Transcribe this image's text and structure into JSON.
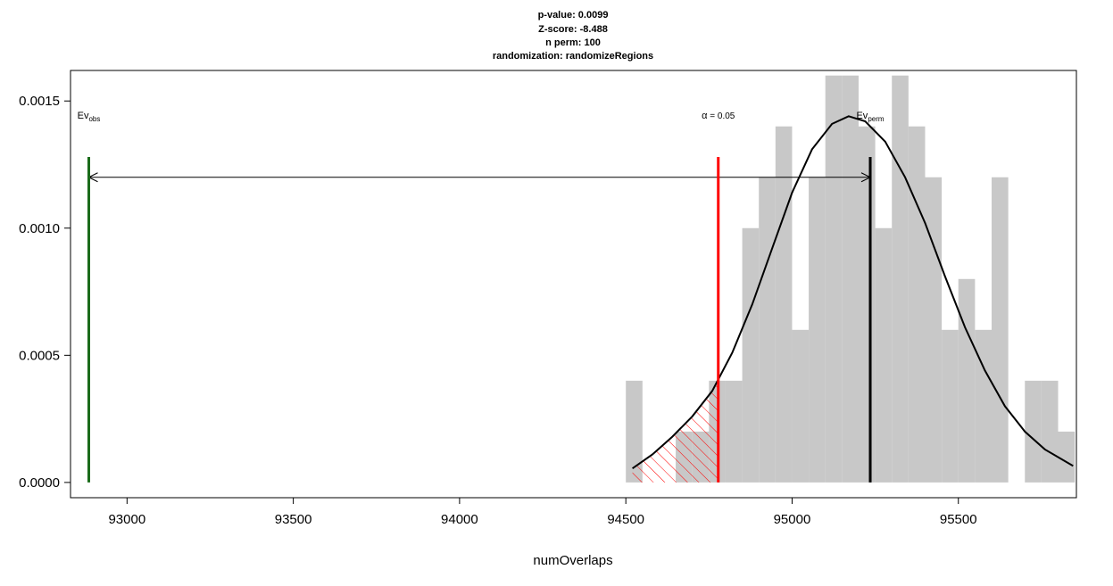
{
  "chart_data": {
    "type": "histogram",
    "title_lines": [
      "p-value:  0.0099",
      "Z-score:  -8.488",
      "n perm:  100",
      "randomization:  randomizeRegions"
    ],
    "xlabel": "numOverlaps",
    "ylabel": "",
    "xlim": [
      92830,
      95855
    ],
    "ylim": [
      -6e-05,
      0.00162
    ],
    "x_ticks": [
      93000,
      93500,
      94000,
      94500,
      95000,
      95500
    ],
    "x_tick_labels": [
      "93000",
      "93500",
      "94000",
      "94500",
      "95000",
      "95500"
    ],
    "y_ticks": [
      0,
      0.0005,
      0.001,
      0.0015
    ],
    "y_tick_labels": [
      "0.0000",
      "0.0005",
      "0.0010",
      "0.0015"
    ],
    "histogram": {
      "bin_width": 50,
      "bins": [
        {
          "x0": 94500,
          "x1": 94550,
          "density": 0.0004
        },
        {
          "x0": 94550,
          "x1": 94600,
          "density": 0.0
        },
        {
          "x0": 94600,
          "x1": 94650,
          "density": 0.0
        },
        {
          "x0": 94650,
          "x1": 94700,
          "density": 0.0002
        },
        {
          "x0": 94700,
          "x1": 94750,
          "density": 0.0002
        },
        {
          "x0": 94750,
          "x1": 94800,
          "density": 0.0004
        },
        {
          "x0": 94800,
          "x1": 94850,
          "density": 0.0004
        },
        {
          "x0": 94850,
          "x1": 94900,
          "density": 0.001
        },
        {
          "x0": 94900,
          "x1": 94950,
          "density": 0.0012
        },
        {
          "x0": 94950,
          "x1": 95000,
          "density": 0.0014
        },
        {
          "x0": 95000,
          "x1": 95050,
          "density": 0.0006
        },
        {
          "x0": 95050,
          "x1": 95100,
          "density": 0.0012
        },
        {
          "x0": 95100,
          "x1": 95150,
          "density": 0.0016
        },
        {
          "x0": 95150,
          "x1": 95200,
          "density": 0.0016
        },
        {
          "x0": 95200,
          "x1": 95250,
          "density": 0.0014
        },
        {
          "x0": 95250,
          "x1": 95300,
          "density": 0.001
        },
        {
          "x0": 95300,
          "x1": 95350,
          "density": 0.0016
        },
        {
          "x0": 95350,
          "x1": 95400,
          "density": 0.0014
        },
        {
          "x0": 95400,
          "x1": 95450,
          "density": 0.0012
        },
        {
          "x0": 95450,
          "x1": 95500,
          "density": 0.0006
        },
        {
          "x0": 95500,
          "x1": 95550,
          "density": 0.0008
        },
        {
          "x0": 95550,
          "x1": 95600,
          "density": 0.0006
        },
        {
          "x0": 95600,
          "x1": 95650,
          "density": 0.0012
        },
        {
          "x0": 95650,
          "x1": 95700,
          "density": 0.0
        },
        {
          "x0": 95700,
          "x1": 95750,
          "density": 0.0004
        },
        {
          "x0": 95750,
          "x1": 95800,
          "density": 0.0004
        },
        {
          "x0": 95800,
          "x1": 95850,
          "density": 0.0002
        }
      ],
      "color": "#c8c8c8"
    },
    "density_curve": {
      "color": "#000000",
      "points": [
        [
          94520,
          5.5e-05
        ],
        [
          94580,
          0.00011
        ],
        [
          94640,
          0.00018
        ],
        [
          94700,
          0.00026
        ],
        [
          94760,
          0.00036
        ],
        [
          94820,
          0.00051
        ],
        [
          94880,
          0.0007
        ],
        [
          94940,
          0.00092
        ],
        [
          95000,
          0.00114
        ],
        [
          95060,
          0.00131
        ],
        [
          95120,
          0.00141
        ],
        [
          95170,
          0.00144
        ],
        [
          95220,
          0.00142
        ],
        [
          95280,
          0.00134
        ],
        [
          95340,
          0.0012
        ],
        [
          95400,
          0.00102
        ],
        [
          95460,
          0.00081
        ],
        [
          95520,
          0.00061
        ],
        [
          95580,
          0.00044
        ],
        [
          95640,
          0.0003
        ],
        [
          95700,
          0.0002
        ],
        [
          95760,
          0.00013
        ],
        [
          95845,
          6.5e-05
        ]
      ]
    },
    "rejection_region": {
      "x_max": 94778,
      "color": "#ff0000",
      "label": "α = 0.05",
      "label_symbol": "α",
      "label_rest": " = 0.05"
    },
    "observed": {
      "x": 92885,
      "label_main": "Ev",
      "label_sub": "obs",
      "color": "#1a6b1a"
    },
    "permuted_mean": {
      "x": 95235,
      "label_main": "Ev",
      "label_sub": "perm",
      "color": "#000000"
    },
    "marker_line_top": 0.00128,
    "arrow_y": 0.0012,
    "label_y": 0.00143,
    "grid": false,
    "legend": "none"
  }
}
